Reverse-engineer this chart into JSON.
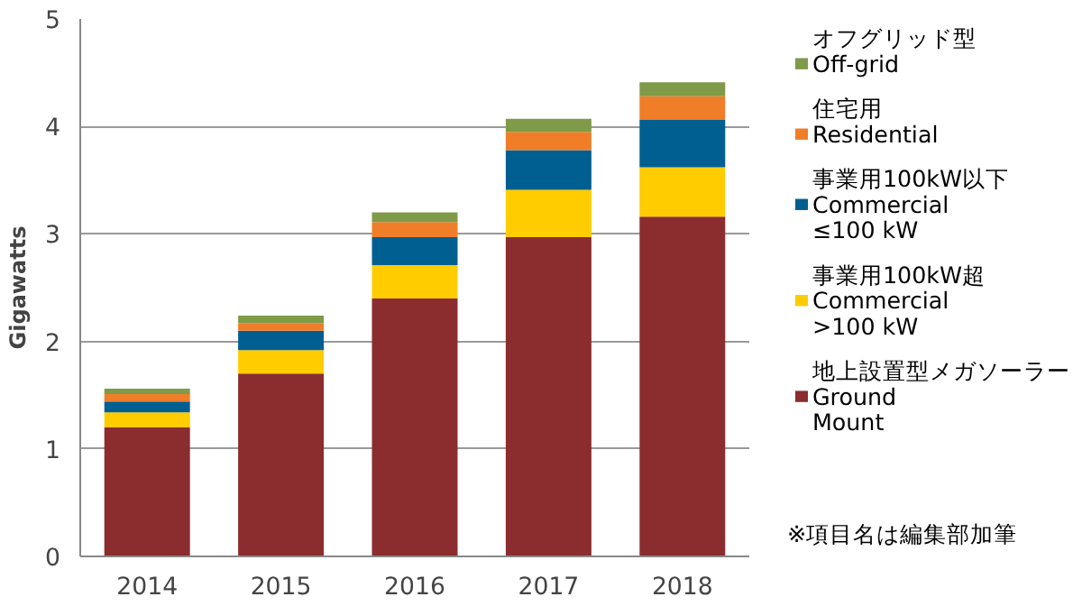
{
  "chart_data": {
    "type": "bar",
    "stacked": true,
    "ylabel": "Gigawatts",
    "categories": [
      "2014",
      "2015",
      "2016",
      "2017",
      "2018"
    ],
    "series": [
      {
        "name": "地上設置型メガソーラー\nGround\nMount",
        "color": "#8b2c2e",
        "values": [
          1.2,
          1.7,
          2.4,
          2.97,
          3.16
        ]
      },
      {
        "name": "事業用100kW超\nCommercial\n>100 kW",
        "color": "#ffcc00",
        "values": [
          0.14,
          0.22,
          0.31,
          0.44,
          0.46
        ]
      },
      {
        "name": "事業用100kW以下\nCommercial\n≤100  kW",
        "color": "#005f91",
        "values": [
          0.1,
          0.18,
          0.26,
          0.37,
          0.44
        ]
      },
      {
        "name": "住宅用\nResidential",
        "color": "#f07d28",
        "values": [
          0.07,
          0.07,
          0.14,
          0.17,
          0.22
        ]
      },
      {
        "name": "オフグリッド型\nOff-grid",
        "color": "#7f9a48",
        "values": [
          0.05,
          0.07,
          0.09,
          0.12,
          0.13
        ]
      }
    ],
    "ylim": [
      0,
      5
    ],
    "yticks": [
      0,
      1,
      2,
      3,
      4,
      5
    ],
    "grid": "y",
    "legend": "right",
    "annotations": [
      "※項目名は編集部加筆"
    ]
  }
}
